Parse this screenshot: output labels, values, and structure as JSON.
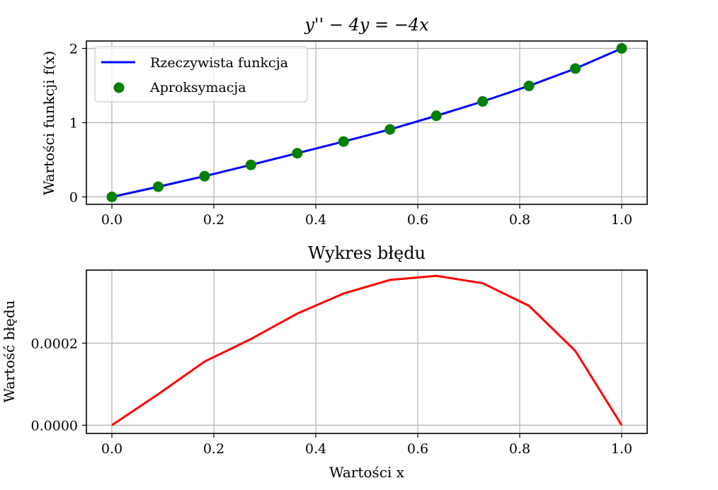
{
  "chart_data": [
    {
      "type": "line",
      "title": "y'' − 4y = −4x",
      "xlabel": "",
      "ylabel": "Wartości funkcji f(x)",
      "xlim": [
        -0.05,
        1.05
      ],
      "ylim": [
        -0.1,
        2.1
      ],
      "xticks": [
        0.0,
        0.2,
        0.4,
        0.6,
        0.8,
        1.0
      ],
      "xtick_labels": [
        "0.0",
        "0.2",
        "0.4",
        "0.6",
        "0.8",
        "1.0"
      ],
      "yticks": [
        0,
        1,
        2
      ],
      "ytick_labels": [
        "0",
        "1",
        "2"
      ],
      "grid": true,
      "legend": "top-left",
      "series": [
        {
          "name": "Rzeczywista funkcja",
          "kind": "line",
          "color": "#0000ff",
          "x": [
            0.0,
            0.0909,
            0.1818,
            0.2727,
            0.3636,
            0.4545,
            0.5455,
            0.6364,
            0.7273,
            0.8182,
            0.9091,
            1.0
          ],
          "y": [
            0.0,
            0.1371,
            0.2792,
            0.4314,
            0.5886,
            0.7457,
            0.9086,
            1.0929,
            1.2857,
            1.4957,
            1.7286,
            2.0
          ]
        },
        {
          "name": "Aproksymacja",
          "kind": "scatter",
          "color": "#008000",
          "x": [
            0.0,
            0.0909,
            0.1818,
            0.2727,
            0.3636,
            0.4545,
            0.5455,
            0.6364,
            0.7273,
            0.8182,
            0.9091,
            1.0
          ],
          "y": [
            0.0,
            0.1371,
            0.2792,
            0.4314,
            0.5886,
            0.7457,
            0.9086,
            1.0929,
            1.2857,
            1.4957,
            1.7286,
            2.0
          ]
        }
      ]
    },
    {
      "type": "line",
      "title": "Wykres błędu",
      "xlabel": "Wartości x",
      "ylabel": "Wartość błędu",
      "xlim": [
        -0.05,
        1.05
      ],
      "ylim": [
        -2e-05,
        0.000378
      ],
      "xticks": [
        0.0,
        0.2,
        0.4,
        0.6,
        0.8,
        1.0
      ],
      "xtick_labels": [
        "0.0",
        "0.2",
        "0.4",
        "0.6",
        "0.8",
        "1.0"
      ],
      "yticks": [
        0.0,
        0.0002
      ],
      "ytick_labels": [
        "0.0000",
        "0.0002"
      ],
      "grid": true,
      "series": [
        {
          "name": "",
          "kind": "line",
          "color": "#ff0000",
          "x": [
            0.0,
            0.0909,
            0.1818,
            0.2727,
            0.3636,
            0.4545,
            0.5455,
            0.6364,
            0.7273,
            0.8182,
            0.9091,
            1.0
          ],
          "y": [
            0.0,
            7.57e-05,
            0.000155,
            0.00021,
            0.000272,
            0.000321,
            0.000354,
            0.000364,
            0.000346,
            0.000291,
            0.000181,
            0.0
          ]
        }
      ]
    }
  ]
}
